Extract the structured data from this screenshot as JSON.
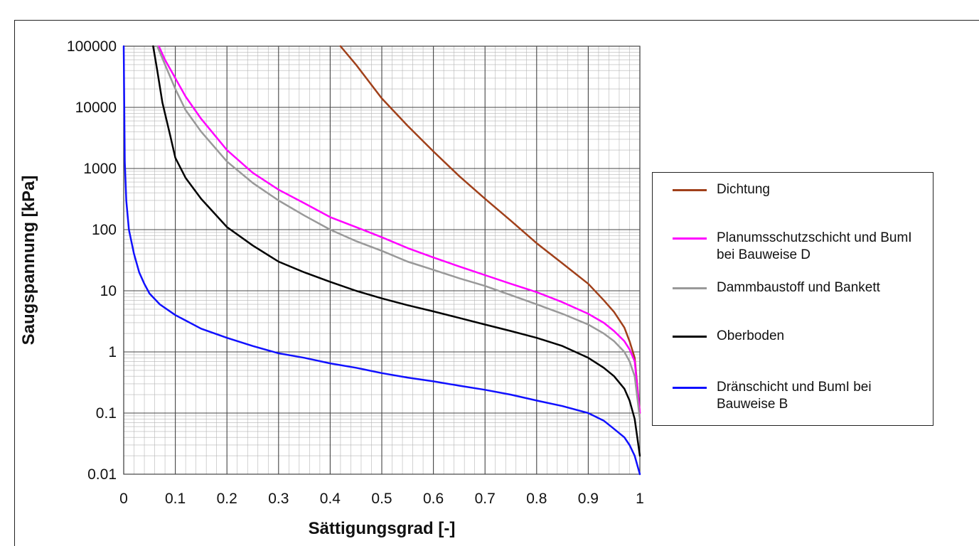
{
  "chart_data": {
    "type": "line",
    "xlabel": "Sättigungsgrad [-]",
    "ylabel": "Saugspannung [kPa]",
    "xlim": [
      0,
      1
    ],
    "ylim": [
      0.01,
      100000
    ],
    "y_scale": "log",
    "grid": true,
    "legend_position": "right",
    "x_ticks": [
      "0",
      "0.1",
      "0.2",
      "0.3",
      "0.4",
      "0.5",
      "0.6",
      "0.7",
      "0.8",
      "0.9",
      "1"
    ],
    "y_ticks": [
      "0.01",
      "0.1",
      "1",
      "10",
      "100",
      "1000",
      "10000",
      "100000"
    ],
    "series": [
      {
        "name": "Dichtung",
        "color": "#a0401a",
        "x": [
          0.42,
          0.45,
          0.5,
          0.55,
          0.6,
          0.65,
          0.7,
          0.75,
          0.8,
          0.85,
          0.9,
          0.93,
          0.95,
          0.97,
          0.98,
          0.99,
          1.0
        ],
        "y": [
          100000,
          50000,
          14000,
          5000,
          1900,
          750,
          320,
          140,
          60,
          28,
          13,
          7,
          4.5,
          2.5,
          1.5,
          0.8,
          0.1
        ]
      },
      {
        "name": "Planumsschutzschicht und BumI bei Bauweise D",
        "color": "#ff00ff",
        "x": [
          0.068,
          0.08,
          0.1,
          0.12,
          0.15,
          0.2,
          0.25,
          0.3,
          0.35,
          0.4,
          0.45,
          0.5,
          0.55,
          0.6,
          0.65,
          0.7,
          0.75,
          0.8,
          0.85,
          0.9,
          0.93,
          0.95,
          0.97,
          0.98,
          0.99,
          1.0
        ],
        "y": [
          100000,
          60000,
          30000,
          15000,
          6500,
          2000,
          850,
          450,
          270,
          160,
          110,
          75,
          50,
          35,
          25,
          18,
          13,
          9.5,
          6.5,
          4.2,
          3.0,
          2.2,
          1.5,
          1.1,
          0.7,
          0.1
        ]
      },
      {
        "name": "Dammbaustoff und Bankett",
        "color": "#999999",
        "x": [
          0.065,
          0.08,
          0.1,
          0.12,
          0.15,
          0.2,
          0.25,
          0.3,
          0.35,
          0.4,
          0.45,
          0.5,
          0.55,
          0.6,
          0.65,
          0.7,
          0.75,
          0.8,
          0.85,
          0.9,
          0.93,
          0.95,
          0.97,
          0.98,
          0.99,
          1.0
        ],
        "y": [
          100000,
          50000,
          20000,
          9000,
          4000,
          1300,
          580,
          300,
          170,
          100,
          65,
          45,
          30,
          22,
          16,
          12,
          8.5,
          6,
          4.2,
          2.8,
          2.0,
          1.5,
          1.0,
          0.7,
          0.4,
          0.08
        ]
      },
      {
        "name": "Oberboden",
        "color": "#000000",
        "x": [
          0.057,
          0.065,
          0.075,
          0.09,
          0.1,
          0.12,
          0.15,
          0.2,
          0.25,
          0.3,
          0.35,
          0.4,
          0.45,
          0.5,
          0.55,
          0.6,
          0.65,
          0.7,
          0.75,
          0.8,
          0.85,
          0.9,
          0.93,
          0.95,
          0.97,
          0.98,
          0.99,
          1.0
        ],
        "y": [
          100000,
          40000,
          12000,
          3500,
          1500,
          700,
          320,
          110,
          55,
          30,
          20,
          14,
          10,
          7.5,
          5.8,
          4.6,
          3.6,
          2.8,
          2.2,
          1.7,
          1.25,
          0.8,
          0.55,
          0.4,
          0.25,
          0.16,
          0.08,
          0.02
        ]
      },
      {
        "name": "Dränschicht und BumI bei Bauweise B",
        "color": "#1010ff",
        "x": [
          0.0,
          0.002,
          0.005,
          0.01,
          0.02,
          0.03,
          0.04,
          0.05,
          0.07,
          0.1,
          0.15,
          0.2,
          0.25,
          0.3,
          0.35,
          0.4,
          0.45,
          0.5,
          0.55,
          0.6,
          0.65,
          0.7,
          0.75,
          0.8,
          0.85,
          0.9,
          0.93,
          0.95,
          0.97,
          0.98,
          0.99,
          1.0
        ],
        "y": [
          100000,
          1300,
          300,
          100,
          40,
          20,
          13,
          9,
          6,
          4,
          2.4,
          1.7,
          1.25,
          0.95,
          0.8,
          0.65,
          0.55,
          0.45,
          0.38,
          0.33,
          0.28,
          0.24,
          0.2,
          0.16,
          0.13,
          0.1,
          0.075,
          0.055,
          0.04,
          0.03,
          0.02,
          0.01
        ]
      }
    ]
  }
}
